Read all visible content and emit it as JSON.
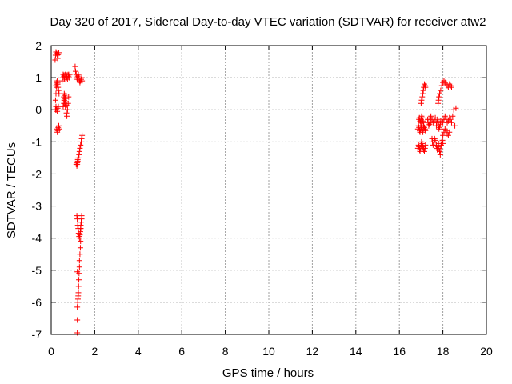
{
  "chart_data": {
    "type": "scatter",
    "title": "Day 320 of 2017, Sidereal Day-to-day VTEC variation (SDTVAR) for receiver atw2",
    "xlabel": "GPS time / hours",
    "ylabel": "SDTVAR / TECUs",
    "xlim": [
      0,
      20
    ],
    "ylim": [
      -7,
      2
    ],
    "xticks": [
      0,
      2,
      4,
      6,
      8,
      10,
      12,
      14,
      16,
      18,
      20
    ],
    "yticks": [
      -7,
      -6,
      -5,
      -4,
      -3,
      -2,
      -1,
      0,
      1,
      2
    ],
    "grid": true,
    "marker": "+",
    "series": [
      {
        "name": "SDTVAR",
        "color": "#ff0000",
        "x": [
          0.18,
          0.2,
          0.22,
          0.25,
          0.28,
          0.3,
          0.32,
          0.35,
          0.2,
          0.22,
          0.25,
          0.28,
          0.3,
          0.33,
          0.2,
          0.22,
          0.25,
          0.28,
          0.3,
          0.25,
          0.28,
          0.3,
          0.32,
          0.35,
          0.38,
          0.22,
          0.25,
          0.28,
          0.3,
          0.32,
          0.34,
          0.36,
          0.5,
          0.52,
          0.55,
          0.58,
          0.6,
          0.62,
          0.65,
          0.68,
          0.7,
          0.72,
          0.75,
          0.78,
          0.8,
          0.82,
          0.85,
          0.58,
          0.6,
          0.62,
          0.65,
          0.68,
          0.7,
          0.72,
          0.75,
          0.78,
          0.8,
          0.6,
          0.62,
          0.65,
          0.68,
          0.7,
          0.55,
          0.58,
          0.6,
          0.63,
          0.66,
          0.7,
          1.1,
          1.12,
          1.15,
          1.18,
          1.2,
          1.22,
          1.25,
          1.28,
          1.3,
          1.32,
          1.35,
          1.38,
          1.4,
          1.42,
          1.2,
          1.22,
          1.25,
          1.28,
          1.3,
          1.32,
          1.35,
          1.38,
          1.4,
          1.42,
          1.15,
          1.18,
          1.2,
          1.22,
          1.18,
          1.2,
          1.22,
          1.24,
          1.26,
          1.28,
          1.3,
          1.32,
          1.34,
          1.35,
          1.36,
          1.38,
          1.4,
          1.4,
          1.38,
          1.36,
          1.35,
          1.34,
          1.32,
          1.3,
          1.3,
          1.28,
          1.27,
          1.26,
          1.25,
          1.24,
          1.23,
          1.22,
          1.2,
          1.2,
          1.2,
          1.2,
          16.85,
          16.88,
          16.9,
          16.93,
          16.95,
          16.98,
          17.0,
          17.02,
          17.05,
          17.08,
          17.1,
          17.12,
          17.15,
          17.18,
          17.2,
          16.9,
          16.92,
          16.95,
          16.98,
          17.0,
          17.02,
          17.05,
          17.08,
          17.1,
          16.85,
          16.88,
          16.9,
          16.93,
          16.95,
          16.98,
          17.0,
          17.02,
          17.05,
          17.08,
          17.1,
          17.12,
          17.15,
          17.18,
          17.2,
          17.0,
          17.02,
          17.05,
          17.08,
          17.1,
          17.12,
          17.15,
          17.18,
          17.2,
          17.3,
          17.32,
          17.35,
          17.38,
          17.4,
          17.42,
          17.45,
          17.5,
          17.52,
          17.55,
          17.6,
          17.62,
          17.65,
          17.7,
          17.72,
          17.75,
          17.78,
          17.8,
          17.82,
          17.85,
          17.88,
          17.9,
          17.92,
          17.95,
          17.98,
          18.0,
          17.7,
          17.72,
          17.75,
          17.78,
          17.8,
          17.82,
          17.85,
          17.88,
          17.9,
          17.78,
          17.8,
          17.82,
          17.85,
          17.9,
          17.95,
          18.0,
          18.05,
          18.1,
          18.15,
          18.2,
          18.25,
          18.3,
          18.35,
          18.4,
          18.0,
          18.05,
          18.1,
          18.15,
          18.2,
          18.25,
          18.3,
          18.35,
          18.4,
          18.45,
          18.5,
          18.55,
          18.6,
          18.0,
          18.05,
          18.1,
          18.15,
          18.2,
          18.25,
          18.3,
          17.45,
          17.5,
          17.55,
          17.6,
          17.65
        ],
        "y": [
          1.55,
          1.7,
          1.8,
          1.75,
          1.7,
          1.6,
          1.72,
          1.78,
          0.0,
          0.1,
          0.0,
          -0.05,
          0.05,
          0.1,
          0.3,
          0.5,
          0.7,
          0.8,
          0.85,
          -0.6,
          -0.7,
          -0.65,
          -0.55,
          -0.5,
          -0.6,
          0.75,
          0.85,
          0.9,
          0.8,
          0.7,
          0.6,
          0.5,
          0.9,
          1.0,
          1.1,
          1.05,
          1.0,
          0.95,
          1.1,
          1.15,
          1.05,
          1.0,
          0.95,
          1.1,
          1.05,
          1.0,
          1.1,
          0.4,
          0.3,
          0.2,
          0.1,
          0.0,
          -0.1,
          -0.2,
          0.0,
          0.2,
          0.4,
          0.5,
          0.45,
          0.35,
          0.25,
          0.15,
          0.1,
          0.2,
          0.3,
          0.35,
          0.25,
          0.15,
          1.35,
          1.2,
          1.1,
          1.0,
          0.95,
          1.05,
          1.1,
          1.0,
          0.9,
          0.85,
          0.9,
          0.95,
          1.0,
          0.9,
          -1.7,
          -1.6,
          -1.5,
          -1.4,
          -1.3,
          -1.2,
          -1.1,
          -1.0,
          -0.9,
          -0.8,
          -1.7,
          -1.75,
          -1.65,
          -1.55,
          -3.3,
          -3.4,
          -3.6,
          -3.7,
          -3.85,
          -3.95,
          -4.0,
          -3.9,
          -3.8,
          -3.7,
          -3.6,
          -3.5,
          -3.4,
          -3.3,
          -3.5,
          -3.7,
          -4.1,
          -4.3,
          -4.5,
          -4.7,
          -4.9,
          -5.1,
          -5.3,
          -5.5,
          -5.7,
          -5.8,
          -5.9,
          -6.0,
          -6.15,
          -6.55,
          -6.95,
          -5.05,
          -1.2,
          -1.1,
          -1.15,
          -1.25,
          -1.3,
          -1.2,
          -1.1,
          -1.0,
          -1.05,
          -1.15,
          -1.2,
          -1.25,
          -1.3,
          -1.2,
          -1.1,
          -0.3,
          -0.25,
          -0.35,
          -0.4,
          -0.3,
          -0.2,
          -0.25,
          -0.35,
          -0.4,
          -0.6,
          -0.5,
          -0.55,
          -0.65,
          -0.7,
          -0.6,
          -0.5,
          -0.55,
          -0.65,
          -0.7,
          -0.6,
          -0.5,
          -0.55,
          -0.6,
          -0.65,
          0.2,
          0.3,
          0.4,
          0.5,
          0.6,
          0.7,
          0.8,
          0.75,
          0.7,
          -0.3,
          -0.4,
          -0.5,
          -0.45,
          -0.3,
          -0.25,
          -0.4,
          -0.9,
          -1.0,
          -1.1,
          -1.0,
          -0.9,
          -0.95,
          -1.1,
          -1.2,
          -1.25,
          -1.15,
          -1.05,
          -1.2,
          -1.3,
          -1.4,
          -1.25,
          -1.1,
          -1.0,
          -0.95,
          -1.05,
          -0.5,
          -0.4,
          -0.3,
          -0.4,
          -0.5,
          -0.6,
          -0.55,
          -0.45,
          -0.35,
          0.2,
          0.3,
          0.4,
          0.5,
          0.6,
          0.75,
          0.85,
          0.9,
          0.85,
          0.8,
          0.75,
          0.7,
          0.8,
          0.75,
          0.7,
          -0.4,
          -0.3,
          -0.2,
          -0.3,
          -0.4,
          -0.35,
          -0.25,
          -0.3,
          -0.4,
          -0.2,
          0.0,
          -0.5,
          0.05,
          -0.8,
          -0.7,
          -0.6,
          -0.65,
          -0.75,
          -0.8,
          -0.7,
          -0.2,
          -0.3,
          -0.4,
          -0.35,
          -0.25
        ]
      }
    ]
  }
}
